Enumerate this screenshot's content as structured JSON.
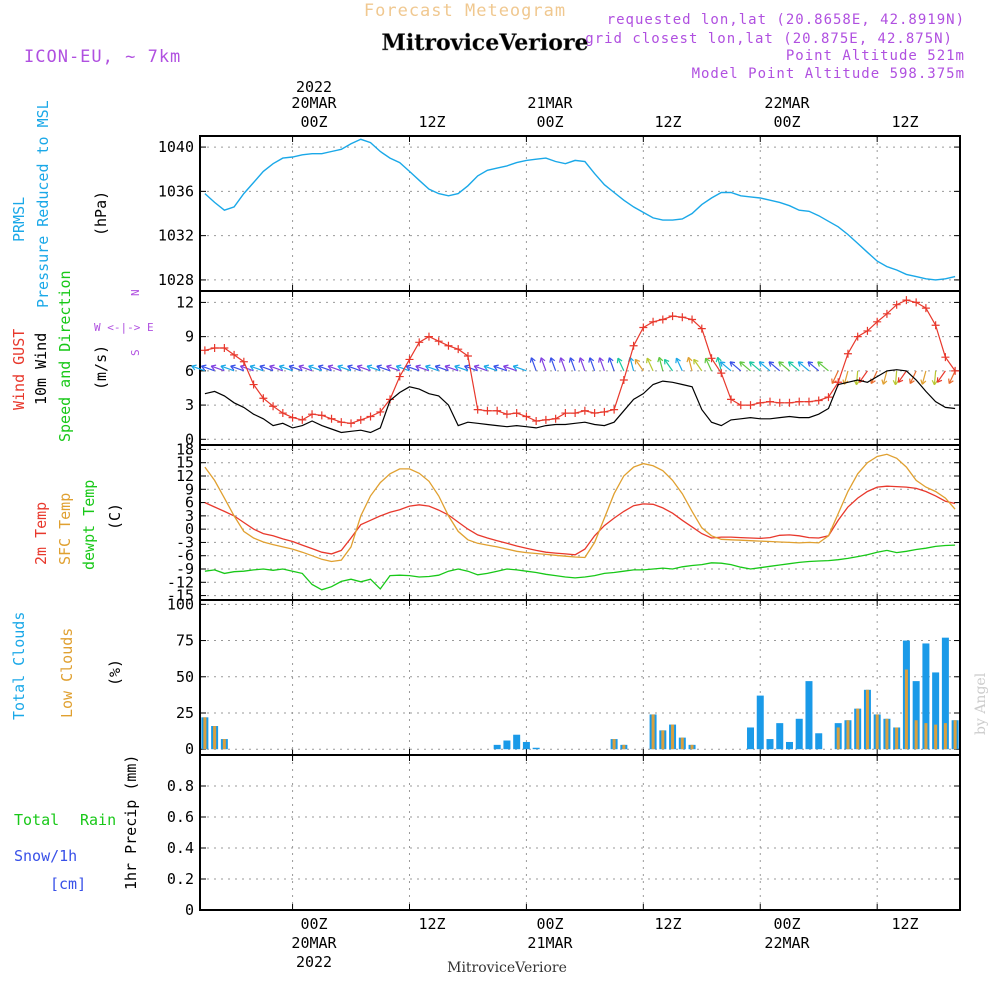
{
  "header": {
    "banner": "Forecast Meteogram",
    "model": "ICON-EU, ~ 7km",
    "station": "MitroviceVeriore",
    "info_lines": [
      "requested lon,lat (20.8658E, 42.8919N)",
      "grid closest lon,lat (20.875E, 42.875N)",
      "Point Altitude 521m",
      "Model Point Altitude 598.375m"
    ],
    "footer_station": "MitroviceVeriore",
    "credit": "by Angel"
  },
  "time_axis": {
    "ticks": [
      {
        "label": "00Z",
        "date": "20MAR",
        "year": "2022",
        "h": 0
      },
      {
        "label": "12Z",
        "h": 12
      },
      {
        "label": "00Z",
        "date": "21MAR",
        "h": 24
      },
      {
        "label": "12Z",
        "h": 36
      },
      {
        "label": "00Z",
        "date": "22MAR",
        "h": 48
      },
      {
        "label": "12Z",
        "h": 60
      }
    ]
  },
  "panels": {
    "pressure": {
      "labels": [
        "PRMSL",
        "Pressure Reduced to MSL"
      ],
      "unit": "(hPa)"
    },
    "wind": {
      "labels": [
        "Wind GUST",
        "10m Wind",
        "Speed and Direction"
      ],
      "unit": "(m/s)",
      "compass": [
        "N",
        "W <-|-> E",
        "S"
      ]
    },
    "temp": {
      "labels": [
        "2m Temp",
        "SFC Temp",
        "dewpt Temp"
      ],
      "unit": "(C)"
    },
    "clouds": {
      "labels": [
        "Total Clouds",
        "Low Clouds"
      ],
      "unit": "(%)"
    },
    "precip": {
      "labels": [
        "Total",
        "Rain",
        "Snow/1h",
        "[cm]"
      ],
      "ylabel": "1hr Precip (mm)"
    }
  },
  "colors": {
    "pressure": "#1aa8e8",
    "gust": "#e8382c",
    "wind": "#000000",
    "t2m": "#e8382c",
    "sfc": "#e0a030",
    "dew": "#18c818",
    "total_clouds": "#1a9ae8",
    "low_clouds": "#d8a040",
    "banner": "#f0c890",
    "info": "#b050e0",
    "model": "#b050e0",
    "rain": "#18c818",
    "snow": "#3850e8"
  },
  "chart_data": [
    {
      "type": "line",
      "panel": "pressure",
      "title": "PRMSL",
      "ylabel": "(hPa)",
      "xlim": [
        -9.5,
        68.5
      ],
      "ylim": [
        1027,
        1041
      ],
      "yticks": [
        1028,
        1032,
        1036,
        1040
      ],
      "x": [
        -9,
        -8,
        -7,
        -6,
        -5,
        -4,
        -3,
        -2,
        -1,
        0,
        1,
        2,
        3,
        4,
        5,
        6,
        7,
        8,
        9,
        10,
        11,
        12,
        13,
        14,
        15,
        16,
        17,
        18,
        19,
        20,
        21,
        22,
        23,
        24,
        25,
        26,
        27,
        28,
        29,
        30,
        31,
        32,
        33,
        34,
        35,
        36,
        37,
        38,
        39,
        40,
        41,
        42,
        43,
        44,
        45,
        46,
        47,
        48,
        49,
        50,
        51,
        52,
        53,
        54,
        55,
        56,
        57,
        58,
        59,
        60,
        61,
        62,
        63,
        64,
        65,
        66,
        67,
        68
      ],
      "values": [
        1035.8,
        1035.0,
        1034.3,
        1034.6,
        1035.8,
        1036.8,
        1037.8,
        1038.5,
        1039.0,
        1039.1,
        1039.3,
        1039.4,
        1039.4,
        1039.6,
        1039.8,
        1040.3,
        1040.7,
        1040.4,
        1039.6,
        1039.0,
        1038.6,
        1037.8,
        1037.0,
        1036.2,
        1035.8,
        1035.6,
        1035.8,
        1036.5,
        1037.4,
        1037.9,
        1038.1,
        1038.3,
        1038.6,
        1038.8,
        1038.9,
        1039.0,
        1038.7,
        1038.5,
        1038.8,
        1038.7,
        1037.6,
        1036.6,
        1035.9,
        1035.2,
        1034.6,
        1034.1,
        1033.6,
        1033.4,
        1033.4,
        1033.5,
        1034.0,
        1034.8,
        1035.4,
        1035.9,
        1035.9,
        1035.6,
        1035.5,
        1035.4,
        1035.2,
        1035.0,
        1034.7,
        1034.3,
        1034.2,
        1033.8,
        1033.3,
        1032.8,
        1032.1,
        1031.3,
        1030.5,
        1029.7,
        1029.2,
        1028.9,
        1028.5,
        1028.3,
        1028.1,
        1028.0,
        1028.1,
        1028.3
      ]
    },
    {
      "type": "line",
      "panel": "wind",
      "title": "Wind GUST / 10m Wind",
      "ylabel": "(m/s)",
      "xlim": [
        -9.5,
        68.5
      ],
      "ylim": [
        -0.5,
        13
      ],
      "yticks": [
        0,
        3,
        6,
        9,
        12
      ],
      "x": [
        -9,
        -8,
        -7,
        -6,
        -5,
        -4,
        -3,
        -2,
        -1,
        0,
        1,
        2,
        3,
        4,
        5,
        6,
        7,
        8,
        9,
        10,
        11,
        12,
        13,
        14,
        15,
        16,
        17,
        18,
        19,
        20,
        21,
        22,
        23,
        24,
        25,
        26,
        27,
        28,
        29,
        30,
        31,
        32,
        33,
        34,
        35,
        36,
        37,
        38,
        39,
        40,
        41,
        42,
        43,
        44,
        45,
        46,
        47,
        48,
        49,
        50,
        51,
        52,
        53,
        54,
        55,
        56,
        57,
        58,
        59,
        60,
        61,
        62,
        63,
        64,
        65,
        66,
        67,
        68
      ],
      "series": [
        {
          "name": "Wind GUST",
          "values": [
            7.8,
            8.0,
            8.0,
            7.4,
            6.8,
            4.8,
            3.6,
            2.9,
            2.3,
            1.9,
            1.7,
            2.2,
            2.1,
            1.8,
            1.5,
            1.4,
            1.7,
            2.0,
            2.4,
            3.5,
            5.5,
            7.0,
            8.5,
            9.0,
            8.6,
            8.2,
            7.9,
            7.3,
            2.6,
            2.5,
            2.5,
            2.2,
            2.3,
            2.0,
            1.6,
            1.7,
            1.8,
            2.3,
            2.3,
            2.5,
            2.3,
            2.4,
            2.6,
            5.2,
            8.2,
            9.8,
            10.3,
            10.5,
            10.8,
            10.7,
            10.5,
            9.7,
            7.1,
            5.8,
            3.5,
            3.0,
            3.0,
            3.2,
            3.3,
            3.2,
            3.2,
            3.3,
            3.3,
            3.4,
            3.7,
            5.0,
            7.5,
            9.0,
            9.5,
            10.3,
            11.0,
            11.8,
            12.2,
            12.0,
            11.5,
            10.0,
            7.2,
            6.0
          ]
        },
        {
          "name": "10m Wind",
          "values": [
            4.0,
            4.2,
            3.8,
            3.2,
            2.8,
            2.2,
            1.8,
            1.2,
            1.4,
            1.0,
            1.2,
            1.6,
            1.2,
            0.9,
            0.6,
            0.7,
            0.8,
            0.6,
            1.0,
            3.4,
            4.1,
            4.6,
            4.4,
            4.0,
            3.8,
            3.0,
            1.2,
            1.5,
            1.4,
            1.3,
            1.2,
            1.1,
            1.2,
            1.1,
            1.0,
            1.2,
            1.3,
            1.3,
            1.4,
            1.5,
            1.3,
            1.2,
            1.5,
            2.5,
            3.5,
            4.0,
            4.8,
            5.1,
            5.0,
            4.8,
            4.6,
            2.6,
            1.5,
            1.2,
            1.7,
            1.8,
            1.9,
            1.8,
            1.8,
            1.9,
            2.0,
            1.9,
            1.9,
            2.2,
            2.7,
            4.8,
            5.0,
            5.2,
            5.0,
            5.5,
            6.0,
            6.1,
            6.0,
            5.2,
            4.2,
            3.3,
            2.8,
            2.7
          ]
        }
      ],
      "barbs_y": 6,
      "barb_dirs": [
        {
          "x": 25,
          "to": "NW"
        },
        {
          "x": 35,
          "to": "S"
        },
        {
          "x": 42,
          "to": "S"
        },
        {
          "x": 48,
          "to": "SW"
        },
        {
          "x": 56,
          "to": "SW"
        },
        {
          "x": 61,
          "to": "SW"
        }
      ]
    },
    {
      "type": "line",
      "panel": "temp",
      "title": "2m Temp / SFC Temp / dewpt Temp",
      "ylabel": "(C)",
      "xlim": [
        -9.5,
        68.5
      ],
      "ylim": [
        -16,
        19
      ],
      "yticks": [
        -15,
        -12,
        -9,
        -6,
        -3,
        0,
        3,
        6,
        9,
        12,
        15,
        18
      ],
      "x": [
        -9,
        -8,
        -7,
        -6,
        -5,
        -4,
        -3,
        -2,
        -1,
        0,
        1,
        2,
        3,
        4,
        5,
        6,
        7,
        8,
        9,
        10,
        11,
        12,
        13,
        14,
        15,
        16,
        17,
        18,
        19,
        20,
        21,
        22,
        23,
        24,
        25,
        26,
        27,
        28,
        29,
        30,
        31,
        32,
        33,
        34,
        35,
        36,
        37,
        38,
        39,
        40,
        41,
        42,
        43,
        44,
        45,
        46,
        47,
        48,
        49,
        50,
        51,
        52,
        53,
        54,
        55,
        56,
        57,
        58,
        59,
        60,
        61,
        62,
        63,
        64,
        65,
        66,
        67,
        68
      ],
      "series": [
        {
          "name": "2m Temp",
          "values": [
            6.0,
            5.0,
            4.0,
            3.0,
            1.5,
            0.0,
            -1.0,
            -1.5,
            -2.2,
            -2.8,
            -3.6,
            -4.4,
            -5.2,
            -5.6,
            -4.8,
            -2.0,
            1.0,
            2.0,
            3.0,
            3.8,
            4.4,
            5.2,
            5.5,
            5.2,
            4.3,
            3.2,
            1.6,
            0.0,
            -1.3,
            -2.0,
            -2.6,
            -3.2,
            -3.8,
            -4.3,
            -4.8,
            -5.2,
            -5.4,
            -5.6,
            -5.8,
            -4.5,
            -1.5,
            0.8,
            2.5,
            4.0,
            5.3,
            5.7,
            5.6,
            4.8,
            3.6,
            2.0,
            0.5,
            -1.0,
            -2.0,
            -1.8,
            -1.8,
            -1.9,
            -2.0,
            -2.1,
            -1.9,
            -1.4,
            -1.3,
            -1.5,
            -1.9,
            -2.0,
            -1.5,
            2.0,
            5.0,
            7.0,
            8.5,
            9.5,
            9.7,
            9.6,
            9.5,
            9.2,
            8.5,
            7.5,
            6.3,
            5.8
          ]
        },
        {
          "name": "SFC Temp",
          "values": [
            14.0,
            11.0,
            7.0,
            3.0,
            -0.5,
            -2.0,
            -2.9,
            -3.5,
            -4.0,
            -4.5,
            -5.2,
            -6.0,
            -6.8,
            -7.3,
            -7.0,
            -4.0,
            3.0,
            7.5,
            10.5,
            12.5,
            13.6,
            13.6,
            12.6,
            10.8,
            7.5,
            3.0,
            -0.5,
            -2.4,
            -3.2,
            -3.6,
            -4.0,
            -4.5,
            -5.0,
            -5.3,
            -5.5,
            -5.7,
            -5.9,
            -6.1,
            -6.3,
            -6.4,
            -3.0,
            2.5,
            8.0,
            12.0,
            14.0,
            14.8,
            14.3,
            13.2,
            11.0,
            8.0,
            4.0,
            0.3,
            -1.5,
            -2.3,
            -2.4,
            -2.5,
            -2.6,
            -2.7,
            -2.8,
            -2.9,
            -3.0,
            -3.1,
            -3.0,
            -3.1,
            -1.5,
            3.5,
            8.5,
            12.5,
            15.0,
            16.4,
            16.9,
            16.0,
            14.0,
            11.0,
            9.5,
            8.5,
            7.0,
            4.5
          ]
        },
        {
          "name": "dewpt Temp",
          "values": [
            -9.5,
            -9.2,
            -10.0,
            -9.6,
            -9.5,
            -9.2,
            -9.0,
            -9.3,
            -9.0,
            -9.5,
            -10.0,
            -12.5,
            -13.7,
            -13.0,
            -11.8,
            -11.3,
            -11.9,
            -11.3,
            -13.5,
            -10.5,
            -10.4,
            -10.5,
            -10.8,
            -10.7,
            -10.4,
            -9.5,
            -9.0,
            -9.5,
            -10.3,
            -10.0,
            -9.5,
            -9.0,
            -9.2,
            -9.5,
            -9.8,
            -10.2,
            -10.5,
            -10.8,
            -11.0,
            -10.8,
            -10.5,
            -10.0,
            -9.8,
            -9.5,
            -9.2,
            -9.2,
            -9.0,
            -8.8,
            -9.0,
            -8.5,
            -8.2,
            -8.0,
            -7.6,
            -7.7,
            -8.0,
            -8.6,
            -9.0,
            -8.7,
            -8.4,
            -8.1,
            -7.8,
            -7.5,
            -7.3,
            -7.2,
            -7.1,
            -6.9,
            -6.6,
            -6.2,
            -5.8,
            -5.2,
            -4.8,
            -5.3,
            -5.0,
            -4.6,
            -4.3,
            -3.9,
            -3.7,
            -3.6
          ]
        }
      ]
    },
    {
      "type": "bar",
      "panel": "clouds",
      "title": "Total Clouds / Low Clouds",
      "ylabel": "(%)",
      "xlim": [
        -9.5,
        68.5
      ],
      "ylim": [
        -4,
        103
      ],
      "yticks": [
        0,
        25,
        50,
        75,
        100
      ],
      "x": [
        -9,
        -8,
        -7,
        -6,
        -5,
        -4,
        -3,
        -2,
        -1,
        0,
        1,
        2,
        3,
        4,
        5,
        6,
        7,
        8,
        9,
        10,
        11,
        12,
        13,
        14,
        15,
        16,
        17,
        18,
        19,
        20,
        21,
        22,
        23,
        24,
        25,
        26,
        27,
        28,
        29,
        30,
        31,
        32,
        33,
        34,
        35,
        36,
        37,
        38,
        39,
        40,
        41,
        42,
        43,
        44,
        45,
        46,
        47,
        48,
        49,
        50,
        51,
        52,
        53,
        54,
        55,
        56,
        57,
        58,
        59,
        60,
        61,
        62,
        63,
        64,
        65,
        66,
        67,
        68
      ],
      "series": [
        {
          "name": "Total Clouds",
          "values": [
            22,
            16,
            7,
            0,
            0,
            0,
            0,
            0,
            0,
            0,
            0,
            0,
            0,
            0,
            0,
            0,
            0,
            0,
            0,
            0,
            0,
            0,
            0,
            0,
            0,
            0,
            0,
            0,
            0,
            0,
            3,
            6,
            10,
            5,
            1,
            0,
            0,
            0,
            0,
            0,
            0,
            0,
            7,
            3,
            0,
            0,
            24,
            13,
            17,
            8,
            3,
            0,
            0,
            0,
            0,
            0,
            15,
            37,
            7,
            18,
            5,
            21,
            47,
            11,
            0,
            18,
            20,
            28,
            41,
            24,
            21,
            15,
            75,
            47,
            73,
            53,
            77,
            20
          ]
        },
        {
          "name": "Low Clouds",
          "values": [
            22,
            16,
            7,
            0,
            0,
            0,
            0,
            0,
            0,
            0,
            0,
            0,
            0,
            0,
            0,
            0,
            0,
            0,
            0,
            0,
            0,
            0,
            0,
            0,
            0,
            0,
            0,
            0,
            0,
            0,
            0,
            0,
            0,
            0,
            0,
            0,
            0,
            0,
            0,
            0,
            0,
            0,
            7,
            3,
            0,
            0,
            24,
            13,
            17,
            8,
            3,
            0,
            0,
            0,
            0,
            0,
            0,
            0,
            0,
            0,
            0,
            0,
            0,
            0,
            0,
            15,
            20,
            28,
            41,
            24,
            21,
            15,
            55,
            20,
            18,
            17,
            18,
            20
          ]
        }
      ]
    },
    {
      "type": "bar",
      "panel": "precip",
      "title": "1hr Precip",
      "ylabel": "1hr Precip (mm)",
      "xlim": [
        -9.5,
        68.5
      ],
      "ylim": [
        0,
        1.0
      ],
      "yticks": [
        0,
        0.2,
        0.4,
        0.6,
        0.8
      ],
      "x": [],
      "values": []
    }
  ]
}
